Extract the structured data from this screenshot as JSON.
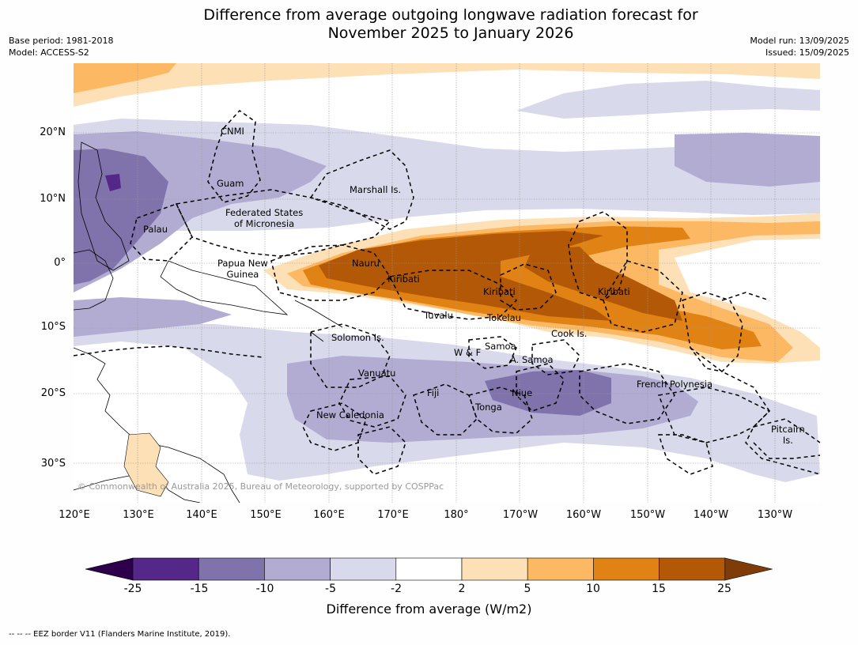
{
  "title": {
    "line1": "Difference from average outgoing longwave radiation forecast for",
    "line2": "November 2025 to January 2026"
  },
  "meta": {
    "base_period": "Base period: 1981-2018",
    "model": "Model: ACCESS-S2",
    "model_run": "Model run: 13/09/2025",
    "issued": "Issued: 15/09/2025"
  },
  "axes": {
    "y": [
      "20°N",
      "10°N",
      "0°",
      "10°S",
      "20°S",
      "30°S"
    ],
    "x": [
      "120°E",
      "130°E",
      "140°E",
      "150°E",
      "160°E",
      "170°E",
      "180°",
      "170°W",
      "160°W",
      "150°W",
      "140°W",
      "130°W"
    ]
  },
  "places": {
    "cnmi": "CNMI",
    "guam": "Guam",
    "marshall": "Marshall Is.",
    "fsm1": "Federated States",
    "fsm2": "of Micronesia",
    "palau": "Palau",
    "png1": "Papua New",
    "png2": "Guinea",
    "nauru": "Nauru",
    "kiribati_w": "Kiribati",
    "kiribati_c": "Kiribati",
    "kiribati_e": "Kiribati",
    "tuvalu": "Tuvalu",
    "tokelau": "Tokelau",
    "cook": "Cook Is.",
    "solomon": "Solomon Is.",
    "samoa": "Samoa",
    "wf": "W & F",
    "asamoa": "A. Samoa",
    "vanuatu": "Vanuatu",
    "fiji": "Fiji",
    "niue": "Niue",
    "tonga": "Tonga",
    "fp": "French Polynesia",
    "newcal": "New Caledonia",
    "pitcairn1": "Pitcairn",
    "pitcairn2": "Is."
  },
  "copyright": "© Commonwealth of Australia 2025, Bureau of Meteorology, supported by COSPPac",
  "colorbar": {
    "ticks": [
      "-25",
      "-15",
      "-10",
      "-5",
      "-2",
      "2",
      "5",
      "10",
      "15",
      "25"
    ],
    "colors": [
      "#2d004b",
      "#542788",
      "#8073ac",
      "#b2abd2",
      "#d8daeb",
      "#ffffff",
      "#fee0b6",
      "#fdb863",
      "#e08214",
      "#b35806",
      "#7f3b08"
    ],
    "label": "Difference from average (W/m2)"
  },
  "footnote": "--  --  -- EEZ border V11 (Flanders Marine Institute, 2019)."
}
